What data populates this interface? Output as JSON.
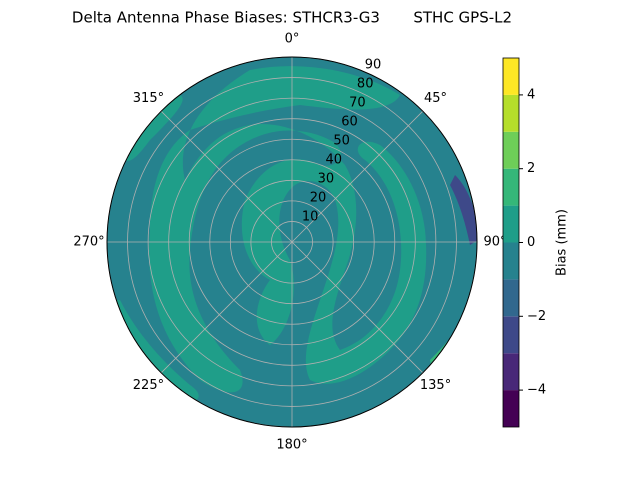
{
  "chart_data": {
    "type": "polar-contour",
    "title": "Delta Antenna Phase Biases: STHCR3-G3       STHC GPS-L2",
    "theta_ticks": [
      {
        "value": 0,
        "label": "0°"
      },
      {
        "value": 45,
        "label": "45°"
      },
      {
        "value": 90,
        "label": "90°"
      },
      {
        "value": 135,
        "label": "135°"
      },
      {
        "value": 180,
        "label": "180°"
      },
      {
        "value": 225,
        "label": "225°"
      },
      {
        "value": 270,
        "label": "270°"
      },
      {
        "value": 315,
        "label": "315°"
      }
    ],
    "rlim": [
      0,
      90
    ],
    "rticks": [
      10,
      20,
      30,
      40,
      50,
      60,
      70,
      80,
      90
    ],
    "colorbar": {
      "label": "Bias (mm)",
      "levels": [
        -5,
        -4,
        -3,
        -2,
        -1,
        0,
        1,
        2,
        3,
        4,
        5
      ],
      "colors": [
        "#440154",
        "#482878",
        "#3e4989",
        "#31688e",
        "#26828e",
        "#1f9e89",
        "#35b779",
        "#6ece58",
        "#b5de2b",
        "#fde725"
      ],
      "ylim": [
        -5,
        5
      ],
      "yticks": [
        {
          "value": -4,
          "label": "−4"
        },
        {
          "value": -2,
          "label": "−2"
        },
        0,
        2,
        4
      ]
    }
  }
}
